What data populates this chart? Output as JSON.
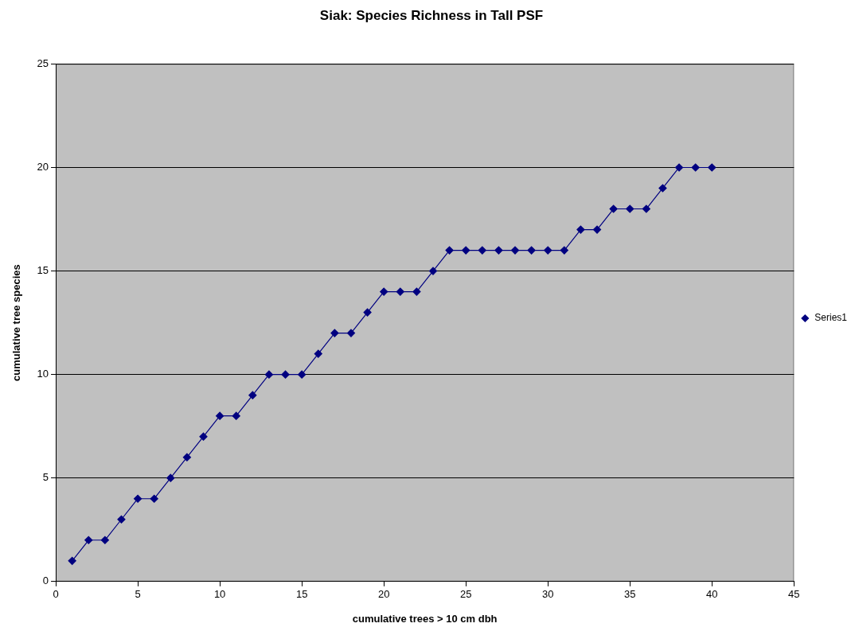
{
  "chart_data": {
    "type": "line",
    "title": "Siak: Species Richness in Tall PSF",
    "xlabel": "cumulative trees > 10 cm dbh",
    "ylabel": "cumulative tree species",
    "x": [
      1,
      2,
      3,
      4,
      5,
      6,
      7,
      8,
      9,
      10,
      11,
      12,
      13,
      14,
      15,
      16,
      17,
      18,
      19,
      20,
      21,
      22,
      23,
      24,
      25,
      26,
      27,
      28,
      29,
      30,
      31,
      32,
      33,
      34,
      35,
      36,
      37,
      38,
      39,
      40
    ],
    "series": [
      {
        "name": "Series1",
        "color": "#000080",
        "values": [
          1,
          2,
          2,
          3,
          4,
          4,
          5,
          6,
          7,
          8,
          8,
          9,
          10,
          10,
          10,
          11,
          12,
          12,
          13,
          14,
          14,
          14,
          15,
          16,
          16,
          16,
          16,
          16,
          16,
          16,
          16,
          17,
          17,
          18,
          18,
          18,
          19,
          20,
          20,
          20
        ]
      }
    ],
    "xlim": [
      0,
      45
    ],
    "xticks": [
      0,
      5,
      10,
      15,
      20,
      25,
      30,
      35,
      40,
      45
    ],
    "ylim": [
      0,
      25
    ],
    "yticks": [
      0,
      5,
      10,
      15,
      20,
      25
    ],
    "grid": "y",
    "legend": "right",
    "marker": "diamond",
    "line_style": "solid"
  }
}
